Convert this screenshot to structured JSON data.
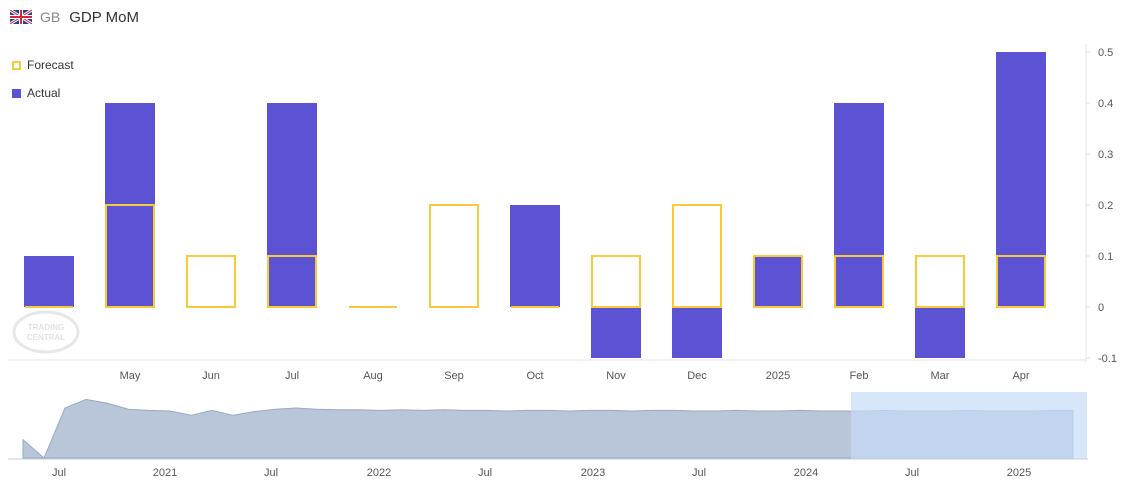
{
  "header": {
    "country": "GB",
    "title": "GDP MoM",
    "flag_icon": "uk-flag-icon"
  },
  "colors": {
    "actual": "#5b52d4",
    "forecast": "#f8c93a",
    "navigator_fill": "#b9c5d8",
    "navigator_selection": "#c8dcf8"
  },
  "chart_data": {
    "type": "bar",
    "legend": {
      "placement": "top-left",
      "entries": [
        "Forecast",
        "Actual"
      ]
    },
    "categories": [
      "",
      "May",
      "Jun",
      "Jul",
      "Aug",
      "Sep",
      "Oct",
      "Nov",
      "Dec",
      "2025",
      "Feb",
      "Mar",
      "Apr"
    ],
    "series": [
      {
        "name": "Forecast",
        "style": "outline",
        "values": [
          0,
          0.2,
          0.1,
          0.1,
          0,
          0.2,
          0,
          0.1,
          0.2,
          0.1,
          0.1,
          0.1,
          0.1
        ]
      },
      {
        "name": "Actual",
        "style": "filled",
        "values": [
          0.1,
          0.4,
          null,
          0.4,
          null,
          null,
          0.2,
          -0.1,
          -0.1,
          0.1,
          0.4,
          -0.1,
          0.5
        ]
      }
    ],
    "ylim": [
      -0.1,
      0.5
    ],
    "yticks": [
      "0.5",
      "0.4",
      "0.3",
      "0.2",
      "0.1",
      "0",
      "-0.1"
    ],
    "grid": false
  },
  "navigator": {
    "tick_labels": [
      "Jul",
      "2021",
      "Jul",
      "2022",
      "Jul",
      "2023",
      "Jul",
      "2024",
      "Jul",
      "2025"
    ]
  }
}
